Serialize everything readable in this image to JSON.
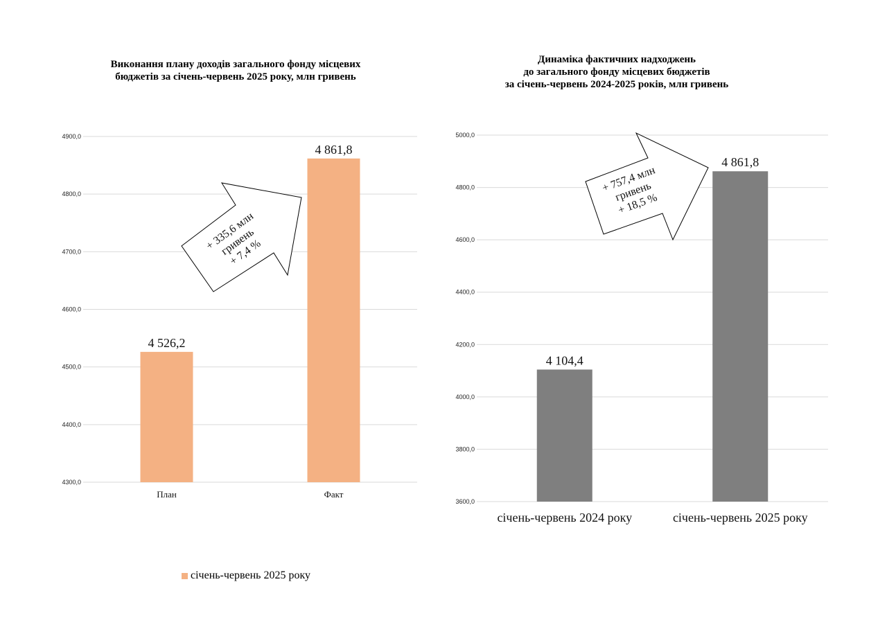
{
  "chart_data": [
    {
      "type": "bar",
      "title_lines": [
        "Виконання плану доходів загального фонду місцевих",
        "бюджетів за січень-червень 2025 року, млн гривень"
      ],
      "categories": [
        "План",
        "Факт"
      ],
      "series": [
        {
          "name": "січень-червень 2025 року",
          "values": [
            4526.2,
            4861.8
          ],
          "color": "#F4B183"
        }
      ],
      "data_labels": [
        "4 526,2",
        "4 861,8"
      ],
      "ylim": [
        4300,
        4900
      ],
      "y_ticks": [
        "4300,0",
        "4400,0",
        "4500,0",
        "4600,0",
        "4700,0",
        "4800,0",
        "4900,0"
      ],
      "grid": true,
      "legend": "bottom",
      "annotation_lines": [
        "+ 335,6 млн",
        "гривень",
        "+ 7,4 %"
      ]
    },
    {
      "type": "bar",
      "title_lines": [
        "Динаміка фактичних надходжень",
        "до загального фонду місцевих бюджетів",
        "за січень-червень 2024-2025 років, млн гривень"
      ],
      "categories": [
        "січень-червень 2024 року",
        "січень-червень 2025 року"
      ],
      "series": [
        {
          "values": [
            4104.4,
            4861.8
          ],
          "color": "#7F7F7F"
        }
      ],
      "data_labels": [
        "4 104,4",
        "4 861,8"
      ],
      "ylim": [
        3600,
        5000
      ],
      "y_ticks": [
        "3600,0",
        "3800,0",
        "4000,0",
        "4200,0",
        "4400,0",
        "4600,0",
        "4800,0",
        "5000,0"
      ],
      "grid": true,
      "annotation_lines": [
        "+ 757,4 млн",
        "гривень",
        "+ 18,5 %"
      ]
    }
  ]
}
